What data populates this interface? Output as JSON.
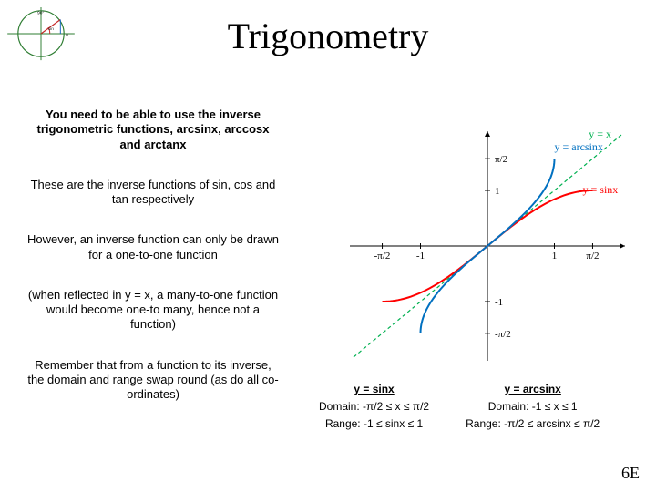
{
  "title": {
    "text": "Trigonometry",
    "fontsize": 40,
    "color": "#000000"
  },
  "paragraphs": {
    "p1": "You need to be able to use the inverse trigonometric functions, arcsinx, arccosx and arctanx",
    "p2": "These are the inverse functions of sin, cos and tan respectively",
    "p3": "However, an inverse function can only be drawn for a one-to-one function",
    "p4": "(when reflected in y = x, a many-to-one function would become one-to many, hence not a function)",
    "p5": "Remember that from a function to its inverse, the domain and range swap round (as do all co-ordinates)"
  },
  "para_fontsize": 13,
  "chart": {
    "xlim": [
      -2.0,
      2.0
    ],
    "ylim": [
      -2.0,
      2.0
    ],
    "axis_color": "#000000",
    "arrow_size": 6,
    "xticks": [
      {
        "x": -1.5708,
        "label": "-π/2"
      },
      {
        "x": -1,
        "label": "-1"
      },
      {
        "x": 1,
        "label": "1"
      },
      {
        "x": 1.5708,
        "label": "π/2"
      }
    ],
    "yticks": [
      {
        "y": 1.5708,
        "label": "π/2"
      },
      {
        "y": 1,
        "label": "1"
      },
      {
        "y": -1,
        "label": "-1"
      },
      {
        "y": -1.5708,
        "label": "-π/2"
      }
    ],
    "curves": {
      "yx": {
        "color": "#00b050",
        "width": 1.2,
        "dash": "4,3",
        "label": "y = x"
      },
      "sinx": {
        "color": "#ff0000",
        "width": 2.0,
        "label": "y = sinx"
      },
      "arcsin": {
        "color": "#0070c0",
        "width": 2.0,
        "label": "y = arcsinx"
      }
    },
    "tick_fontsize": 11,
    "label_fontsize": 12
  },
  "tables": {
    "sinx": {
      "header": "y = sinx",
      "domain": "Domain: -π/2 ≤ x ≤ π/2",
      "range": "Range: -1 ≤ sinx ≤ 1"
    },
    "arcsinx": {
      "header": "y = arcsinx",
      "domain": "Domain: -1 ≤ x ≤ 1",
      "range": "Range: -π/2 ≤ arcsinx ≤ π/2"
    }
  },
  "table_fontsize": 12,
  "page_label": "6E",
  "page_label_fontsize": 18,
  "unit_circle": {
    "stroke": "#2e7d32",
    "accent": "#c62828",
    "accent2": "#1565c0",
    "text": "#222222"
  }
}
